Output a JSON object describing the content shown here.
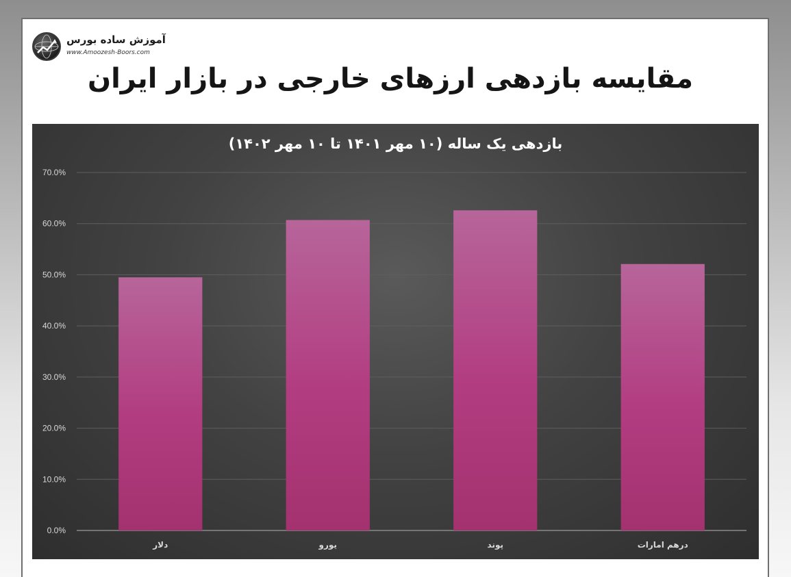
{
  "brand": {
    "name": "آموزش ساده بورس",
    "url": "www.Amoozesh-Boors.com"
  },
  "page_title": "مقایسه بازدهی ارزهای خارجی در بازار ایران",
  "colors": {
    "bar_top": "#b45f91",
    "bar_bottom": "#a83377",
    "panel": "#3f3f3f",
    "text": "#ffffff"
  },
  "chart_data": {
    "type": "bar",
    "title": "بازدهی یک ساله (۱۰ مهر ۱۴۰۱ تا ۱۰ مهر ۱۴۰۲)",
    "categories": [
      "دلار",
      "یورو",
      "پوند",
      "درهم امارات"
    ],
    "values": [
      49.5,
      60.7,
      62.6,
      52.1
    ],
    "ylim": [
      0,
      70
    ],
    "yticks": [
      "0.0%",
      "10.0%",
      "20.0%",
      "30.0%",
      "40.0%",
      "50.0%",
      "60.0%",
      "70.0%"
    ],
    "grid": true,
    "legend": "none"
  }
}
